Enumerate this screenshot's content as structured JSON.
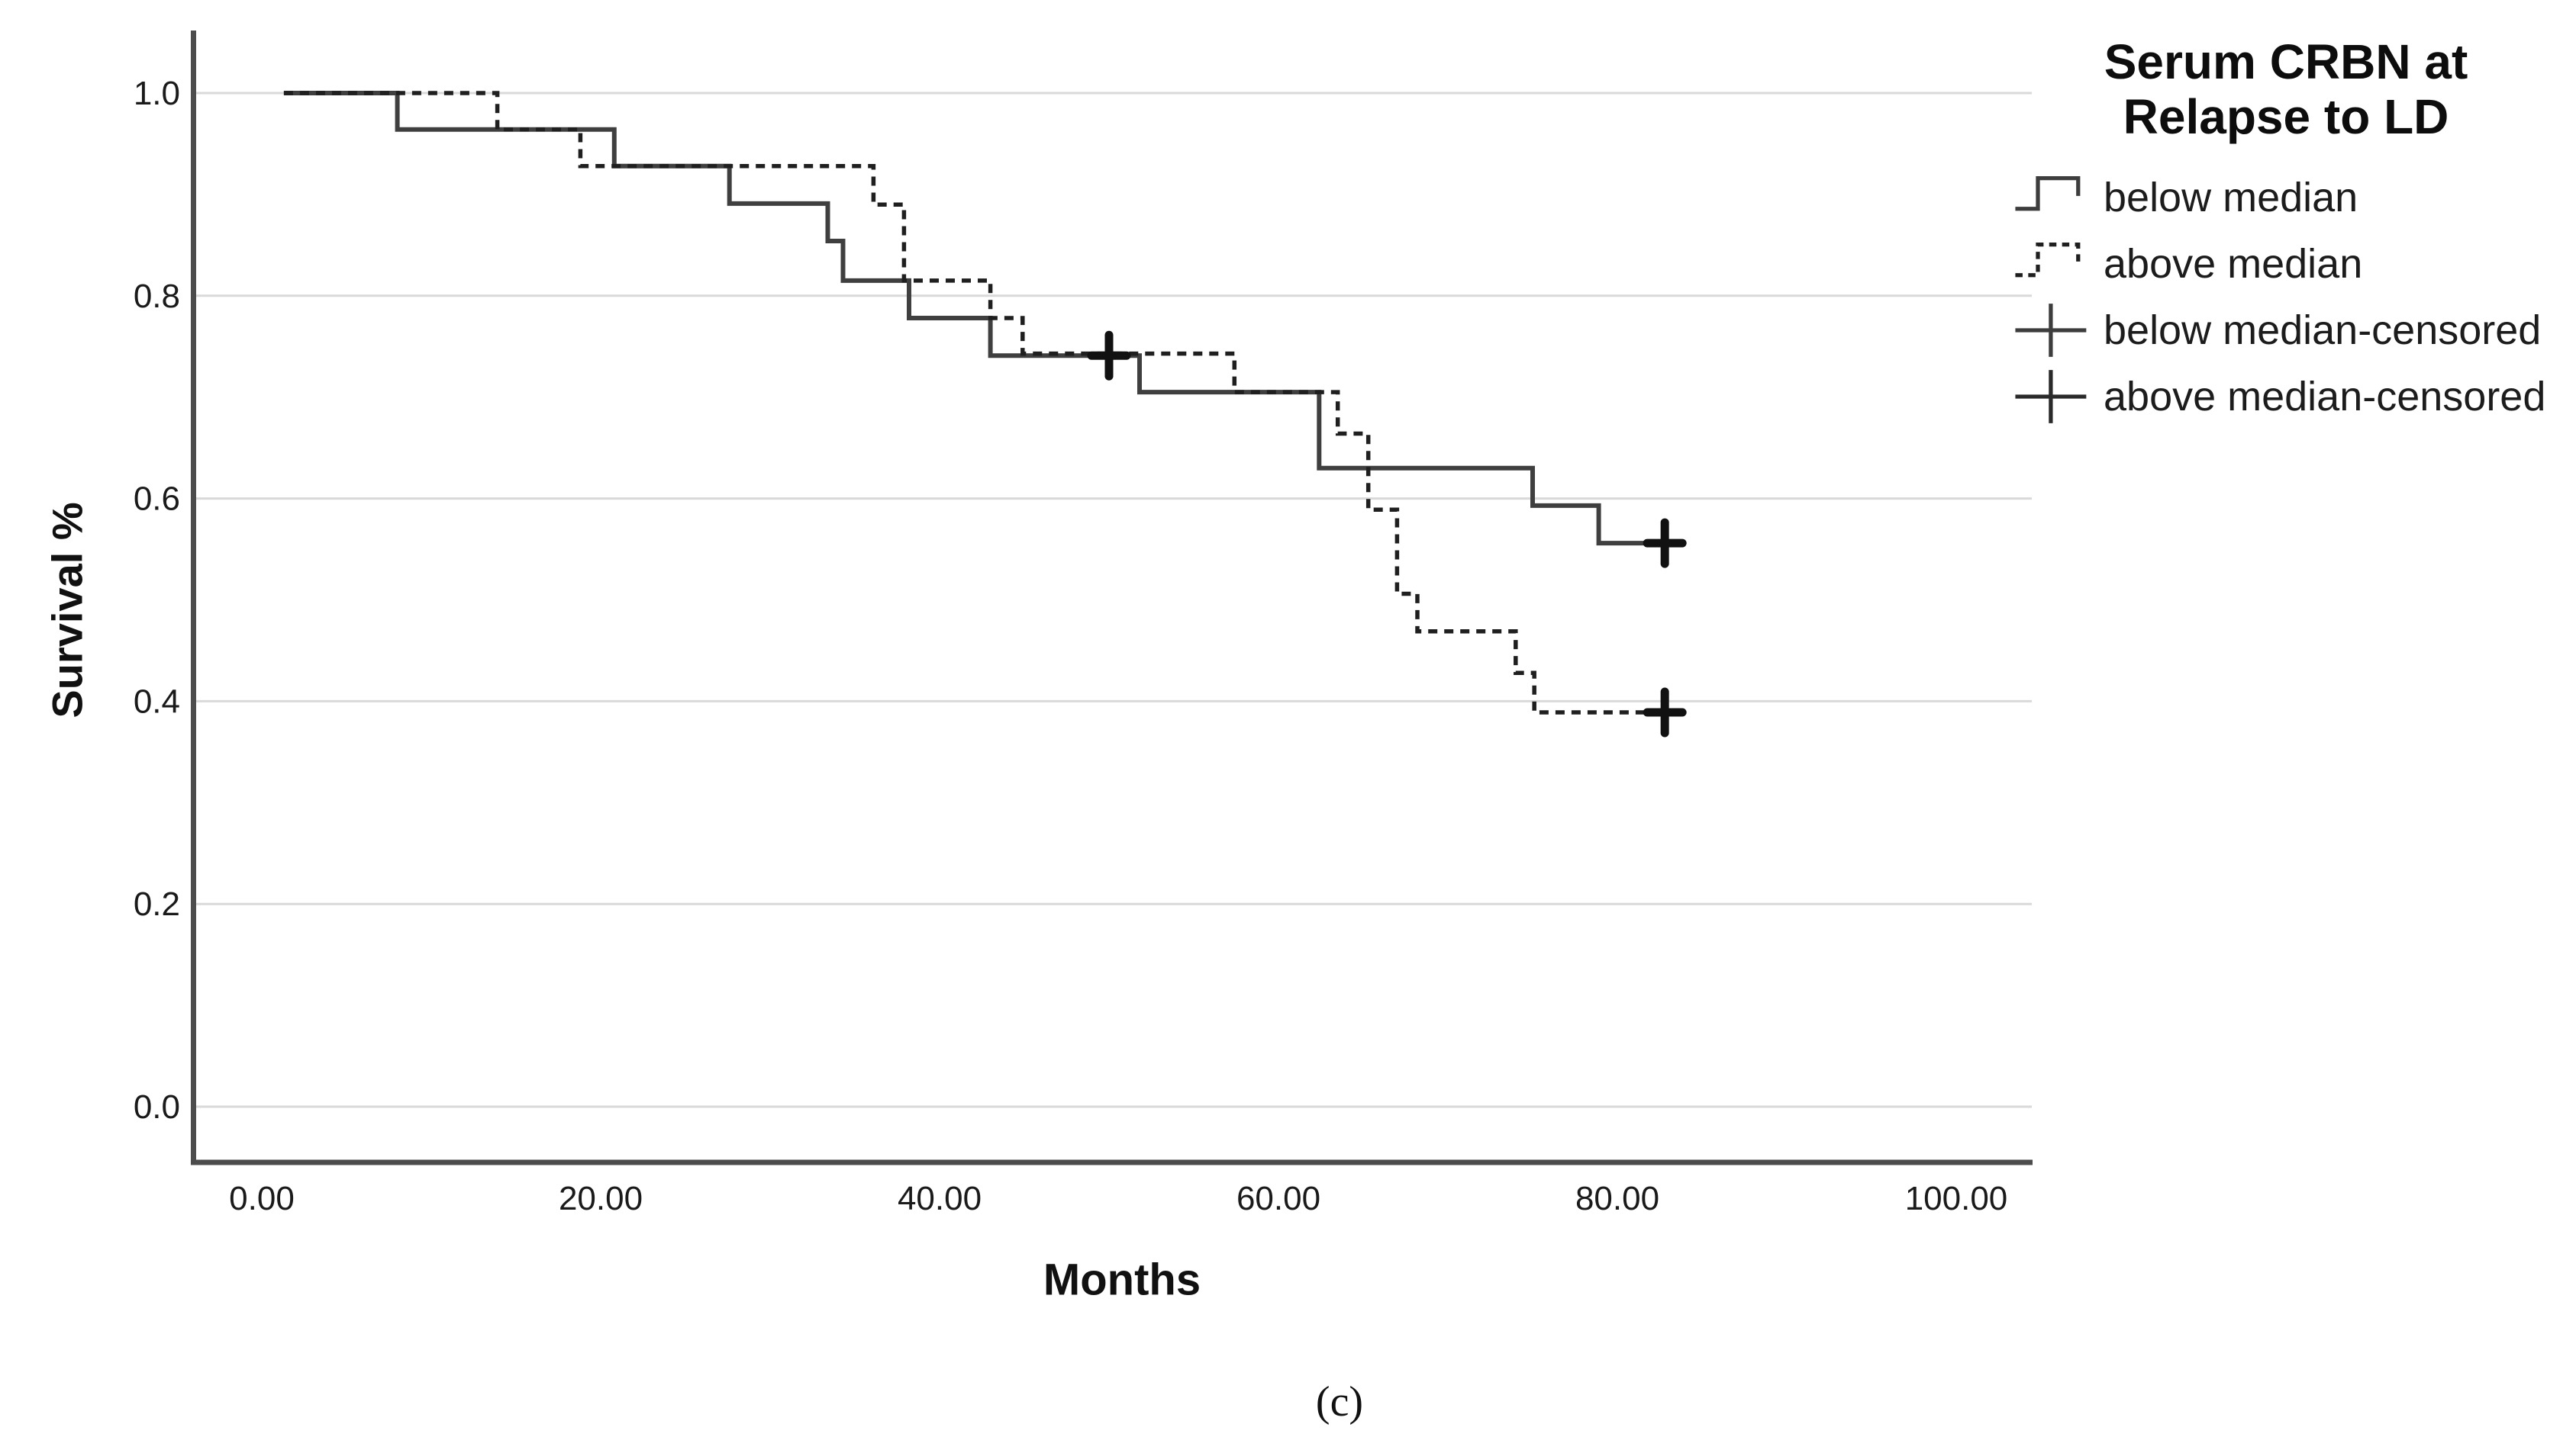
{
  "figure": {
    "caption": "(c)",
    "xlabel": "Months",
    "ylabel": "Survival %"
  },
  "legend": {
    "title_line1": "Serum CRBN at",
    "title_line2": "Relapse to LD",
    "items": [
      {
        "label": "below median",
        "glyph": "solid-step-line"
      },
      {
        "label": "above median",
        "glyph": "dashed-step-line"
      },
      {
        "label": "below median-censored",
        "glyph": "line-with-plus"
      },
      {
        "label": "above median-censored",
        "glyph": "line-with-plus"
      }
    ]
  },
  "colors": {
    "grid": "#d9d9d9",
    "axis": "#4c4c4c",
    "tick_text": "#1a1a1a",
    "solid_series": "#3f3f3f",
    "dashed_series": "#1f1f1f",
    "censor": "#111111"
  },
  "chart_data": {
    "type": "line",
    "subtype": "kaplan-meier-step",
    "title": "Serum CRBN at Relapse to LD",
    "xlabel": "Months",
    "ylabel": "Survival %",
    "xlim": [
      -4,
      104.5
    ],
    "ylim": [
      -0.055,
      1.06
    ],
    "grid": "horizontal-only",
    "legend_position": "top-right-outside",
    "x_ticks": [
      {
        "value": 0,
        "label": "0.00"
      },
      {
        "value": 20,
        "label": "20.00"
      },
      {
        "value": 40,
        "label": "40.00"
      },
      {
        "value": 60,
        "label": "60.00"
      },
      {
        "value": 80,
        "label": "80.00"
      },
      {
        "value": 100,
        "label": "100.00"
      }
    ],
    "y_ticks": [
      {
        "value": 1.0,
        "label": "1.0"
      },
      {
        "value": 0.8,
        "label": "0.8"
      },
      {
        "value": 0.6,
        "label": "0.6"
      },
      {
        "value": 0.4,
        "label": "0.4"
      },
      {
        "value": 0.2,
        "label": "0.2"
      },
      {
        "value": 0.0,
        "label": "0.0"
      }
    ],
    "series": [
      {
        "name": "below median",
        "style": "solid",
        "points": [
          [
            1.3,
            1.0
          ],
          [
            8.0,
            0.964
          ],
          [
            20.8,
            0.928
          ],
          [
            27.6,
            0.891
          ],
          [
            33.4,
            0.854
          ],
          [
            34.3,
            0.815
          ],
          [
            38.2,
            0.778
          ],
          [
            43.0,
            0.741
          ],
          [
            51.8,
            0.705
          ],
          [
            62.4,
            0.63
          ],
          [
            75.0,
            0.593
          ],
          [
            78.9,
            0.556
          ]
        ],
        "end_x": 83.8,
        "censored": [
          [
            50.0,
            0.741
          ],
          [
            82.8,
            0.556
          ]
        ]
      },
      {
        "name": "above median",
        "style": "dashed",
        "points": [
          [
            1.3,
            1.0
          ],
          [
            13.9,
            0.964
          ],
          [
            18.8,
            0.928
          ],
          [
            36.1,
            0.89
          ],
          [
            37.9,
            0.815
          ],
          [
            43.0,
            0.778
          ],
          [
            44.9,
            0.743
          ],
          [
            57.4,
            0.705
          ],
          [
            63.5,
            0.664
          ],
          [
            65.3,
            0.589
          ],
          [
            67.0,
            0.506
          ],
          [
            68.2,
            0.469
          ],
          [
            74.0,
            0.428
          ],
          [
            75.1,
            0.389
          ]
        ],
        "end_x": 83.8,
        "censored": [
          [
            82.8,
            0.389
          ]
        ]
      }
    ]
  }
}
